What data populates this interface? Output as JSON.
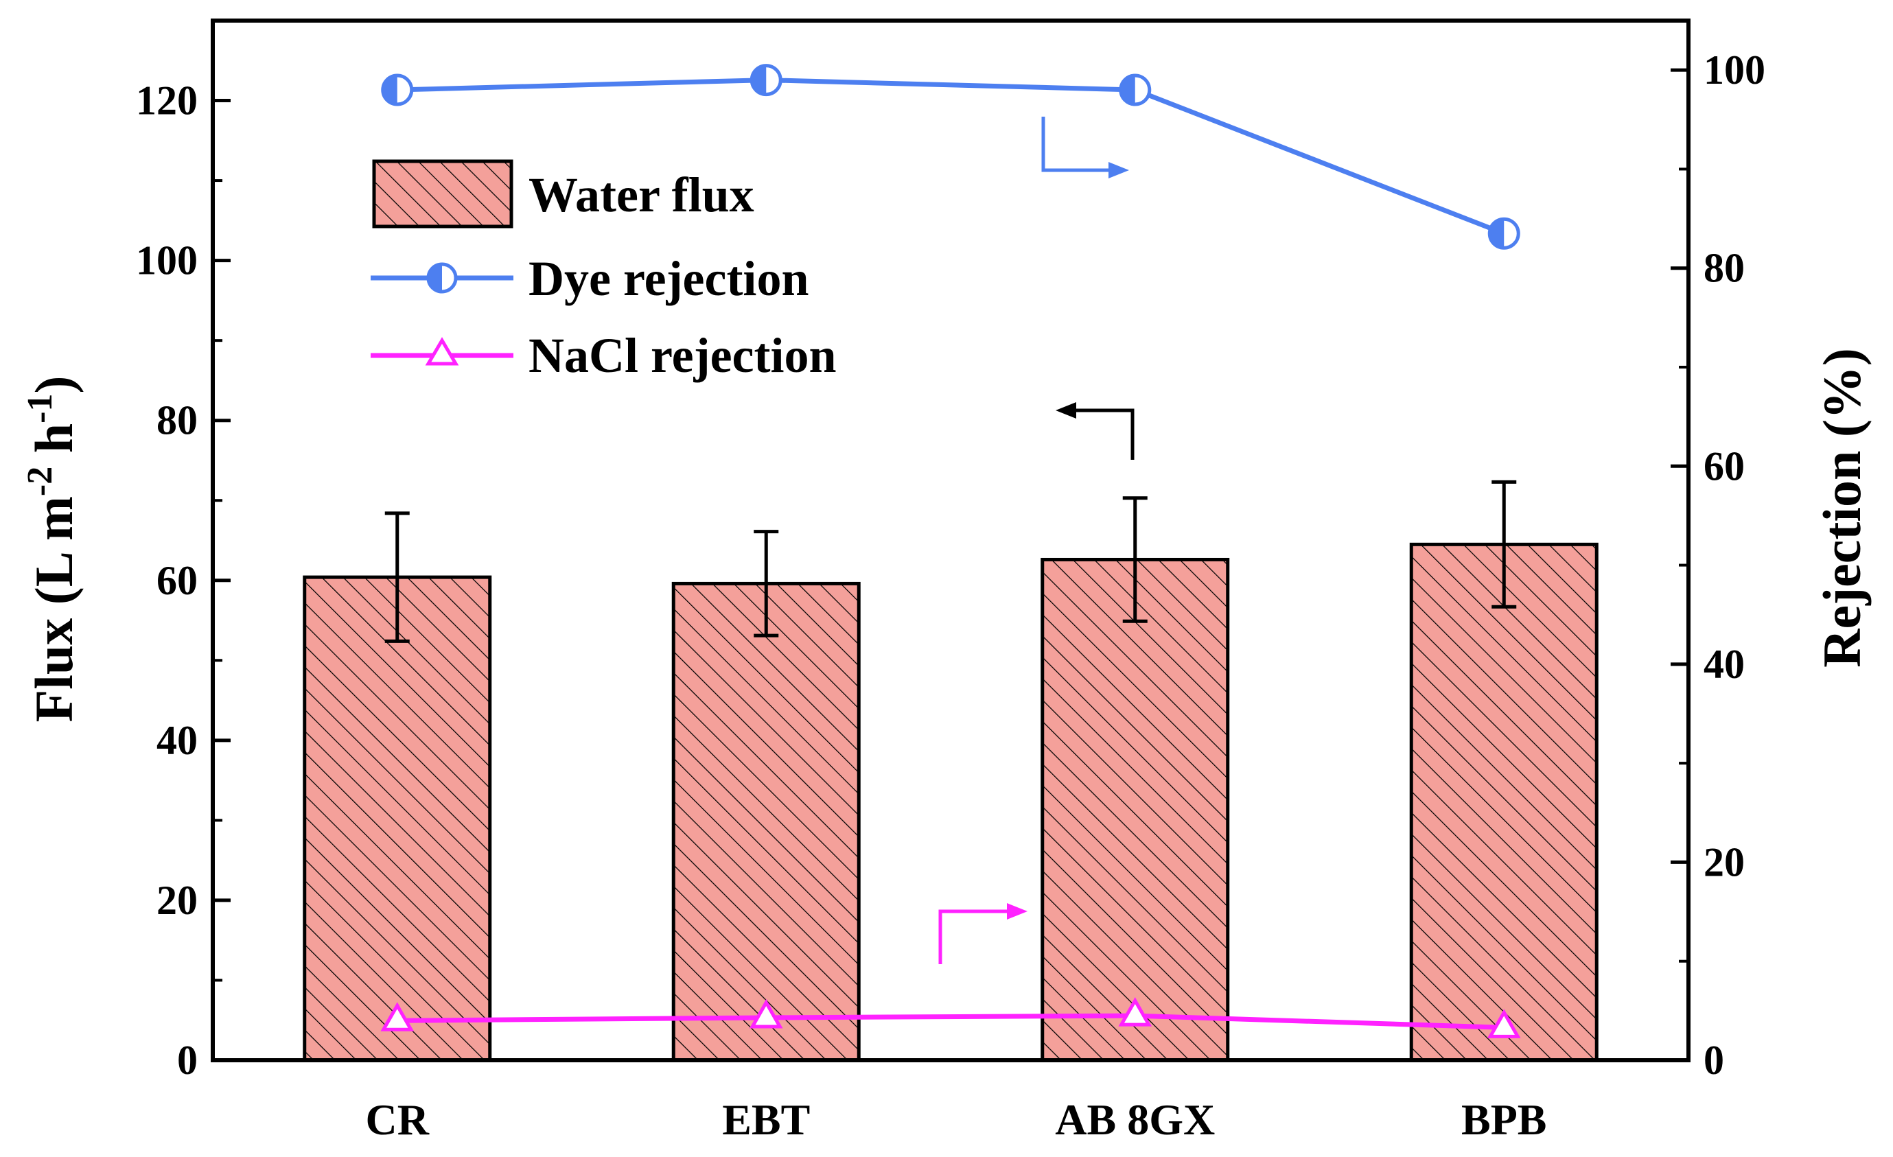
{
  "chart_data": {
    "type": "bar",
    "categories": [
      "CR",
      "EBT",
      "AB 8GX",
      "BPB"
    ],
    "series": [
      {
        "name": "Water flux",
        "axis": "left",
        "kind": "bar",
        "values": [
          60.4,
          59.6,
          62.6,
          64.5
        ],
        "errors": [
          8.0,
          6.5,
          7.7,
          7.8
        ],
        "color": "#f4a09a",
        "hatch": "diagonal"
      },
      {
        "name": "Dye rejection",
        "axis": "right",
        "kind": "line",
        "marker": "half-circle",
        "values": [
          98.0,
          99.0,
          98.0,
          83.5
        ],
        "color": "#4d7ff0"
      },
      {
        "name": "NaCl rejection",
        "axis": "right",
        "kind": "line",
        "marker": "triangle",
        "values": [
          4.0,
          4.3,
          4.5,
          3.3
        ],
        "color": "#ff22ff"
      }
    ],
    "y_left": {
      "label_main": "Flux (L m",
      "sup1": "-2",
      "label_mid": " h",
      "sup2": "-1",
      "label_end": ")",
      "ylim": [
        0,
        130
      ],
      "ticks": [
        "0",
        "20",
        "40",
        "60",
        "80",
        "100",
        "120"
      ]
    },
    "y_right": {
      "label": "Rejection (%)",
      "ylim": [
        0,
        105
      ],
      "ticks": [
        "0",
        "20",
        "40",
        "60",
        "80",
        "100"
      ]
    },
    "legend": {
      "placement": "top-left",
      "entries": [
        "Water flux",
        "Dye rejection",
        "NaCl rejection"
      ]
    },
    "annotations": [
      {
        "name": "dye-rejection-right-arrow",
        "points_to": "right axis"
      },
      {
        "name": "flux-left-arrow",
        "points_to": "left axis"
      },
      {
        "name": "nacl-rejection-right-arrow",
        "points_to": "right axis"
      }
    ]
  }
}
